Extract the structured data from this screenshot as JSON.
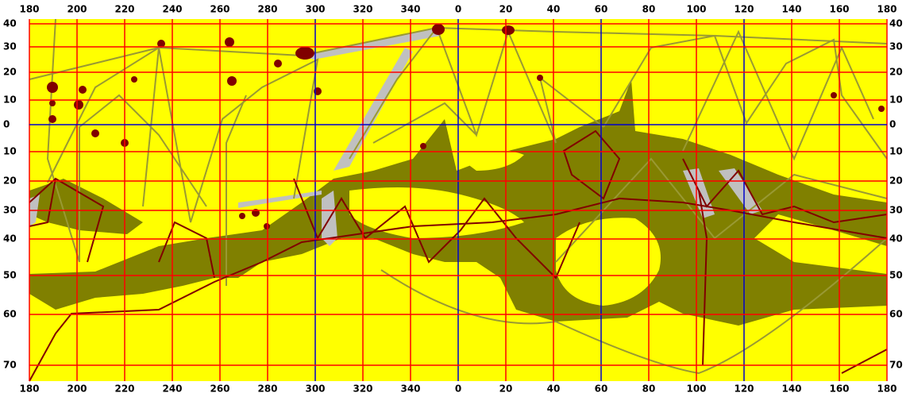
{
  "map": {
    "top_labels": [
      "180",
      "200",
      "220",
      "240",
      "260",
      "280",
      "300",
      "320",
      "340",
      "0",
      "20",
      "40",
      "60",
      "80",
      "100",
      "120",
      "140",
      "160",
      "180"
    ],
    "bottom_labels": [
      "180",
      "200",
      "220",
      "240",
      "260",
      "280",
      "300",
      "320",
      "340",
      "0",
      "20",
      "40",
      "60",
      "80",
      "100",
      "120",
      "140",
      "160",
      "180"
    ],
    "left_labels": [
      "40",
      "30",
      "20",
      "10",
      "0",
      "10",
      "20",
      "30",
      "40",
      "50",
      "60",
      "70"
    ],
    "right_labels": [
      "40",
      "30",
      "20",
      "10",
      "0",
      "10",
      "20",
      "30",
      "40",
      "50",
      "60",
      "70"
    ]
  }
}
